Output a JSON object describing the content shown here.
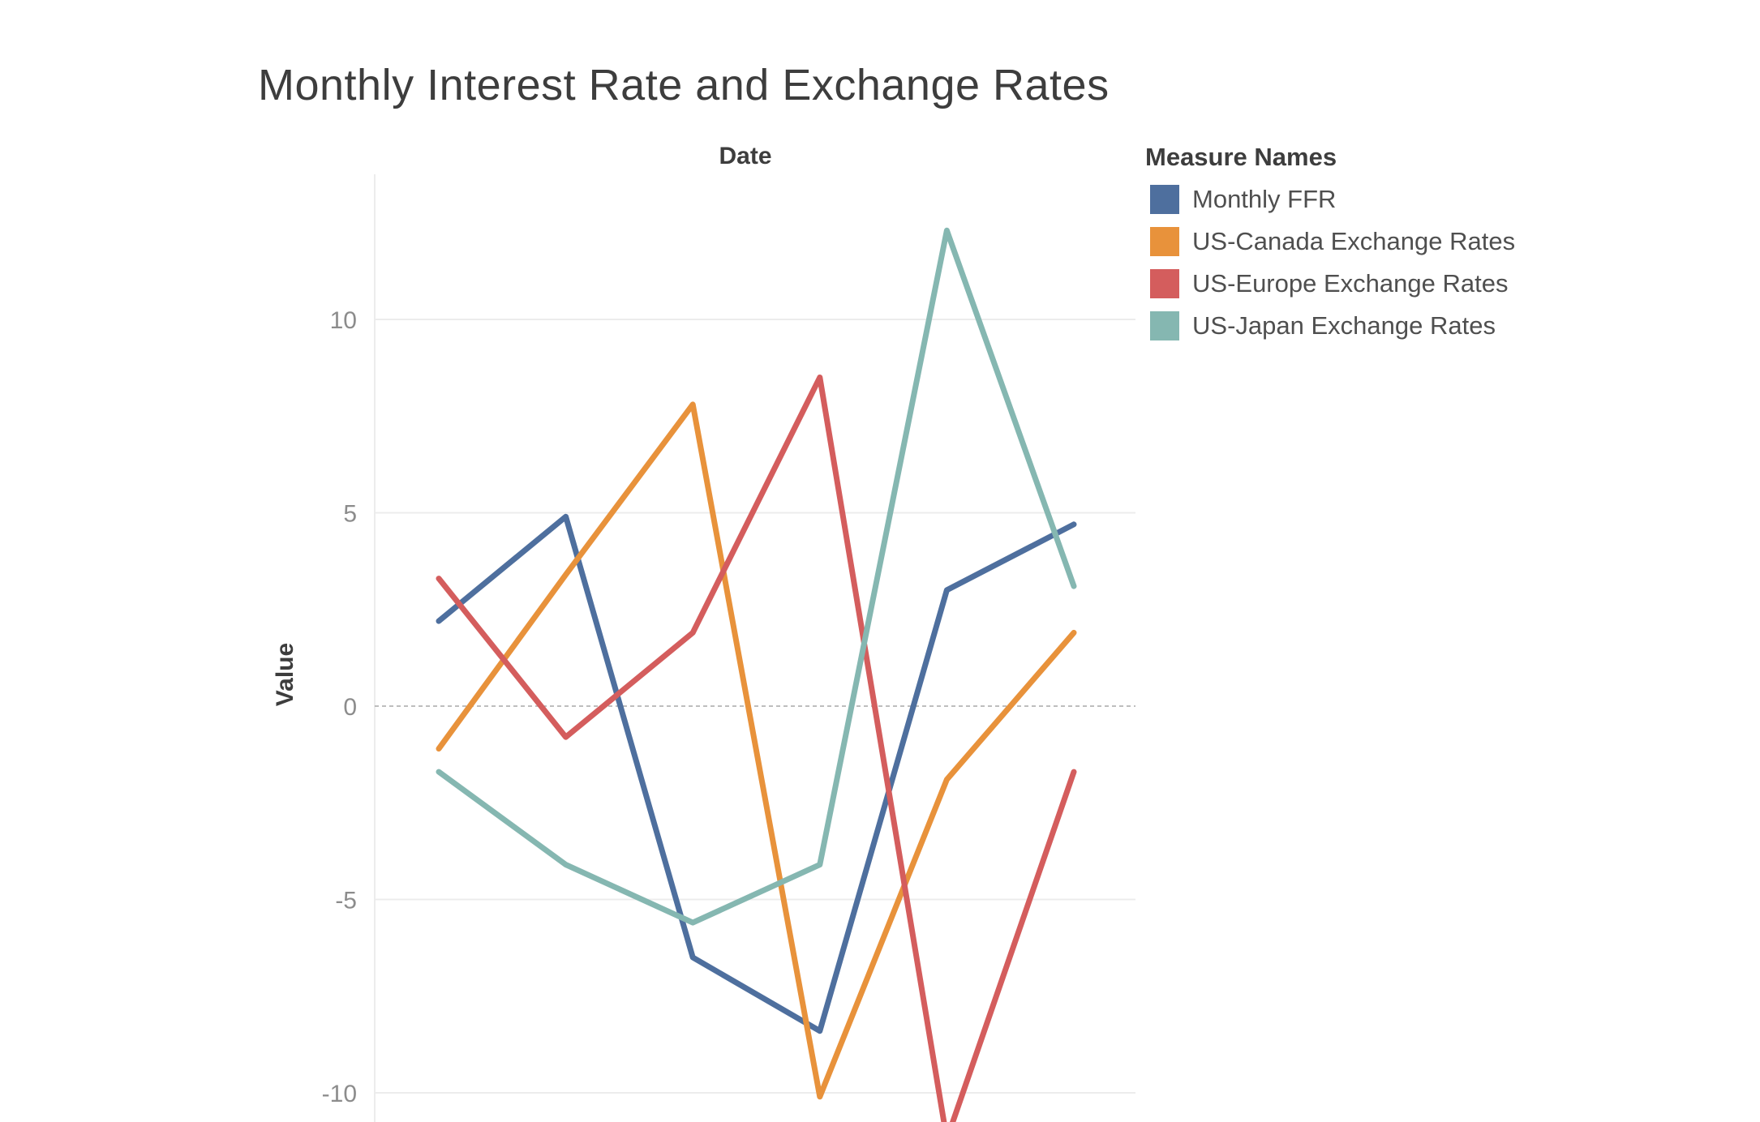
{
  "chart_data": {
    "type": "line",
    "title": "Monthly Interest Rate and Exchange Rates",
    "x_header": "Date",
    "ylabel": "Value",
    "ylim": [
      -11.2,
      13.6
    ],
    "yticks": [
      10,
      5,
      0,
      -5,
      -10
    ],
    "ytick_labels": [
      "10",
      "5",
      "0",
      "-5",
      "-10"
    ],
    "x": [
      1,
      2,
      3,
      4,
      5,
      6
    ],
    "grid": true,
    "zero_line": true,
    "legend_title": "Measure Names",
    "legend_position": "right",
    "series": [
      {
        "name": "Monthly FFR",
        "color": "#4e6f9e",
        "values": [
          2.2,
          4.9,
          -6.5,
          -8.4,
          3.0,
          4.7
        ]
      },
      {
        "name": "US-Canada Exchange Rates",
        "color": "#e8923b",
        "values": [
          -1.1,
          3.4,
          7.8,
          -10.1,
          -1.9,
          1.9
        ]
      },
      {
        "name": "US-Europe Exchange Rates",
        "color": "#d45d5d",
        "values": [
          3.3,
          -0.8,
          1.9,
          8.5,
          -11.2,
          -1.7
        ]
      },
      {
        "name": "US-Japan Exchange Rates",
        "color": "#85b7b1",
        "values": [
          -1.7,
          -4.1,
          -5.6,
          -4.1,
          12.3,
          3.1
        ]
      }
    ]
  }
}
